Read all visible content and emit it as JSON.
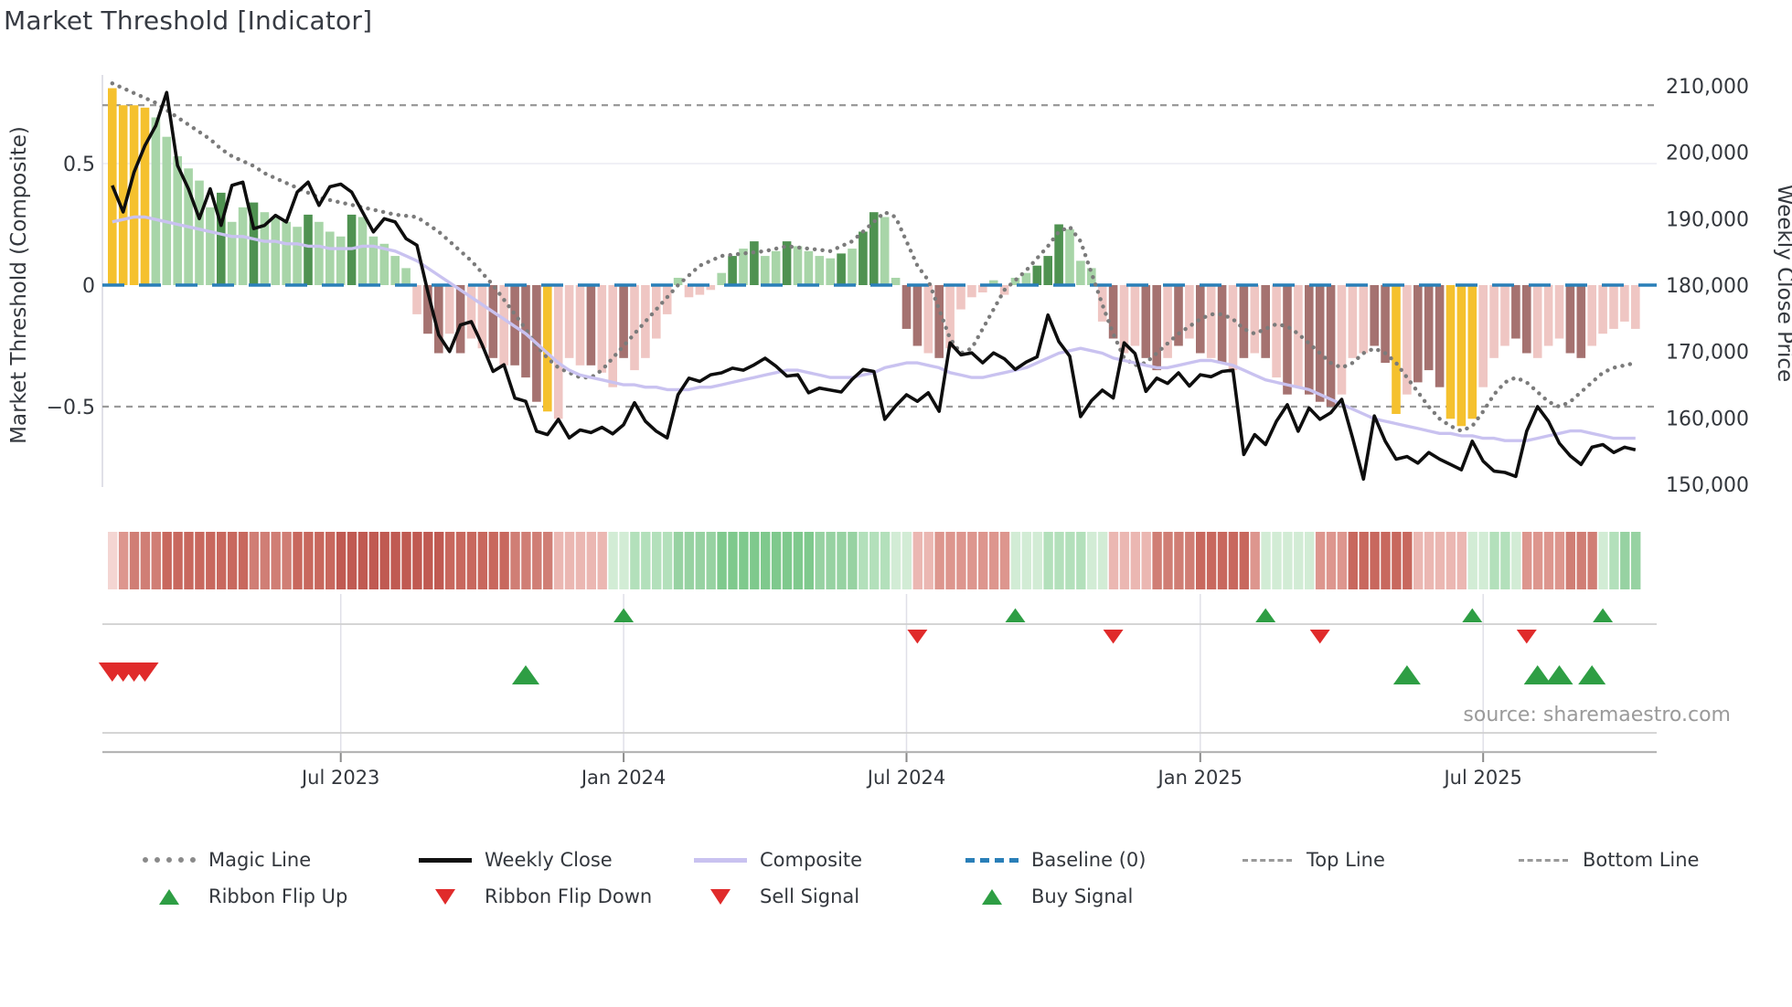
{
  "title": "Market Threshold [Indicator]",
  "source_text": "source: sharemaestro.com",
  "axes": {
    "left_label": "Market Threshold (Composite)",
    "right_label": "Weekly Close Price",
    "left_ticks": [
      {
        "label": "0.5",
        "value": 0.5
      },
      {
        "label": "0",
        "value": 0
      },
      {
        "label": "−0.5",
        "value": -0.5
      }
    ],
    "right_ticks": [
      {
        "label": "210,000",
        "value": 210
      },
      {
        "label": "200,000",
        "value": 200
      },
      {
        "label": "190,000",
        "value": 190
      },
      {
        "label": "180,000",
        "value": 180
      },
      {
        "label": "170,000",
        "value": 170
      },
      {
        "label": "160,000",
        "value": 160
      },
      {
        "label": "150,000",
        "value": 150
      }
    ],
    "x_ticks": [
      {
        "label": "Jul 2023",
        "week": 21
      },
      {
        "label": "Jan 2024",
        "week": 47
      },
      {
        "label": "Jul 2024",
        "week": 73
      },
      {
        "label": "Jan 2025",
        "week": 100
      },
      {
        "label": "Jul 2025",
        "week": 126
      }
    ]
  },
  "legend": {
    "row1": [
      {
        "label": "Magic Line",
        "swatch": "dotted-gray-line"
      },
      {
        "label": "Weekly Close",
        "swatch": "solid-black-line"
      },
      {
        "label": "Composite",
        "swatch": "solid-purple-line"
      },
      {
        "label": "Baseline (0)",
        "swatch": "dashed-blue-line"
      },
      {
        "label": "Top Line",
        "swatch": "dashed-gray-line"
      },
      {
        "label": "Bottom Line",
        "swatch": "dashed-gray-line"
      }
    ],
    "row2": [
      {
        "label": "Ribbon Flip Up",
        "swatch": "green-up-triangle"
      },
      {
        "label": "Ribbon Flip Down",
        "swatch": "red-down-triangle"
      },
      {
        "label": "Sell Signal",
        "swatch": "red-down-triangle"
      },
      {
        "label": "Buy Signal",
        "swatch": "green-up-triangle"
      }
    ]
  },
  "colors": {
    "bar_map": {
      "Y": "#F5C12E",
      "G": "#A8D5A8",
      "D": "#4F9251",
      "P": "#EFC6C3",
      "M": "#A57270"
    },
    "weekly_close": "#0E0E0E",
    "composite": "#C9C2F0",
    "magic_line": "#7B7B7B",
    "baseline": "#2A7FB8",
    "threshold_lines": "#9A9A9A",
    "grid": "#ECECF4",
    "spine": "#D9D9E3",
    "panel_line": "#CFCFCF",
    "axis_line": "#B5B5B5",
    "tick": "#8A8A8A",
    "tick_text": "#33373D",
    "flip_up": "#2E9E44",
    "flip_down": "#E02B2B",
    "buy": "#2E9E44",
    "sell": "#E02B2B",
    "ribbon_map": {
      "r1": "#C05A52",
      "r2": "#C8685E",
      "r3": "#D07E75",
      "r4": "#DD968E",
      "r5": "#EBB7B2",
      "r6": "#F4D5D2",
      "g1": "#7FC98D",
      "g2": "#97D2A2",
      "g3": "#B3E0BB",
      "g4": "#D2ECD5"
    }
  },
  "chart_data": {
    "type": "bar+line (weekly indicator panel)",
    "title": "Market Threshold [Indicator]",
    "x_unit": "week",
    "total_weeks": 141,
    "x_tick_labels": [
      "Jul 2023",
      "Jan 2024",
      "Jul 2024",
      "Jan 2025",
      "Jul 2025"
    ],
    "x_tick_weeks": [
      21,
      47,
      73,
      100,
      126
    ],
    "ylabel_left": "Market Threshold (Composite)",
    "ylabel_right": "Weekly Close Price",
    "ylim_left": [
      -0.87,
      0.87
    ],
    "ylim_right_thousands": [
      148,
      212
    ],
    "baseline": 0,
    "top_line": 0.74,
    "bottom_line": -0.5,
    "gridline_at": 0.5,
    "threshold_bars": {
      "values": [
        0.81,
        0.74,
        0.74,
        0.73,
        0.69,
        0.61,
        0.53,
        0.48,
        0.43,
        0.32,
        0.38,
        0.26,
        0.32,
        0.34,
        0.3,
        0.28,
        0.26,
        0.24,
        0.29,
        0.26,
        0.22,
        0.2,
        0.29,
        0.28,
        0.2,
        0.17,
        0.12,
        0.07,
        -0.12,
        -0.2,
        -0.28,
        -0.2,
        -0.28,
        -0.22,
        -0.26,
        -0.3,
        -0.33,
        -0.33,
        -0.38,
        -0.48,
        -0.52,
        -0.55,
        -0.3,
        -0.33,
        -0.33,
        -0.36,
        -0.42,
        -0.3,
        -0.35,
        -0.3,
        -0.22,
        -0.12,
        0.03,
        -0.05,
        -0.04,
        -0.02,
        0.05,
        0.12,
        0.15,
        0.18,
        0.12,
        0.14,
        0.18,
        0.16,
        0.14,
        0.12,
        0.11,
        0.13,
        0.15,
        0.22,
        0.3,
        0.28,
        0.03,
        -0.18,
        -0.25,
        -0.28,
        -0.3,
        -0.26,
        -0.1,
        -0.05,
        -0.03,
        0.02,
        -0.04,
        0.03,
        0.05,
        0.08,
        0.12,
        0.25,
        0.23,
        0.1,
        0.07,
        -0.15,
        -0.22,
        -0.28,
        -0.25,
        -0.3,
        -0.35,
        -0.3,
        -0.25,
        -0.22,
        -0.28,
        -0.3,
        -0.32,
        -0.35,
        -0.3,
        -0.28,
        -0.3,
        -0.38,
        -0.45,
        -0.42,
        -0.45,
        -0.48,
        -0.5,
        -0.45,
        -0.3,
        -0.28,
        -0.25,
        -0.32,
        -0.53,
        -0.45,
        -0.4,
        -0.35,
        -0.42,
        -0.55,
        -0.58,
        -0.55,
        -0.42,
        -0.3,
        -0.25,
        -0.22,
        -0.28,
        -0.3,
        -0.25,
        -0.22,
        -0.28,
        -0.3,
        -0.25,
        -0.2,
        -0.18,
        -0.15,
        -0.18
      ],
      "colors": [
        "Y",
        "Y",
        "Y",
        "Y",
        "G",
        "G",
        "G",
        "G",
        "G",
        "G",
        "D",
        "G",
        "G",
        "D",
        "G",
        "G",
        "G",
        "G",
        "D",
        "G",
        "G",
        "G",
        "D",
        "G",
        "G",
        "G",
        "G",
        "G",
        "P",
        "M",
        "M",
        "P",
        "M",
        "P",
        "P",
        "M",
        "P",
        "M",
        "M",
        "M",
        "Y",
        "P",
        "P",
        "P",
        "M",
        "P",
        "P",
        "M",
        "P",
        "P",
        "P",
        "P",
        "G",
        "P",
        "P",
        "P",
        "G",
        "D",
        "G",
        "D",
        "G",
        "G",
        "D",
        "G",
        "G",
        "G",
        "G",
        "D",
        "G",
        "D",
        "D",
        "G",
        "G",
        "M",
        "M",
        "P",
        "M",
        "P",
        "P",
        "P",
        "P",
        "G",
        "P",
        "G",
        "G",
        "D",
        "D",
        "D",
        "G",
        "G",
        "G",
        "P",
        "M",
        "P",
        "P",
        "M",
        "M",
        "P",
        "M",
        "P",
        "M",
        "P",
        "M",
        "P",
        "M",
        "P",
        "M",
        "P",
        "M",
        "P",
        "M",
        "M",
        "M",
        "P",
        "P",
        "P",
        "M",
        "M",
        "Y",
        "P",
        "M",
        "M",
        "M",
        "Y",
        "Y",
        "Y",
        "P",
        "P",
        "P",
        "M",
        "M",
        "P",
        "P",
        "P",
        "M",
        "M",
        "P",
        "P",
        "P",
        "P",
        "P"
      ]
    },
    "weekly_close_thousands": [
      195,
      191,
      197,
      201,
      204,
      209,
      198,
      194.5,
      190,
      194.5,
      189,
      195,
      195.5,
      188.5,
      189,
      190.5,
      189.5,
      194,
      195.5,
      192,
      194.8,
      195.2,
      194,
      191,
      188,
      190,
      189.5,
      187,
      186,
      179,
      172.5,
      170,
      174,
      174.5,
      171,
      167,
      168,
      163,
      162.5,
      158,
      157.5,
      159.8,
      157,
      158.2,
      157.8,
      158.6,
      157.6,
      159,
      162.3,
      159.5,
      158,
      157,
      163.5,
      166,
      165.5,
      166.5,
      166.8,
      167.5,
      167.2,
      168,
      169,
      167.8,
      166.3,
      166.5,
      163.8,
      164.5,
      164.2,
      163.9,
      165.8,
      167.3,
      167,
      159.8,
      161.8,
      163.5,
      162.5,
      163.8,
      161,
      171.3,
      169.5,
      169.8,
      168.3,
      169.8,
      168.9,
      167.3,
      168.4,
      169.2,
      175.5,
      171.5,
      169.3,
      160.2,
      162.6,
      164.2,
      163,
      171.3,
      169.7,
      164,
      166,
      165.2,
      166.8,
      164.8,
      166.5,
      166.2,
      167,
      167.2,
      154.5,
      157.5,
      156,
      159.5,
      162,
      158,
      161.5,
      159.8,
      160.8,
      162.8,
      157,
      150.8,
      160.3,
      156.5,
      153.8,
      154.2,
      153.2,
      154.8,
      153.8,
      153,
      152.2,
      156.5,
      153.5,
      152,
      151.8,
      151.2,
      158,
      161.7,
      159.5,
      156.2,
      154.3,
      153,
      155.6,
      156,
      154.8,
      155.6,
      155.2
    ],
    "composite": [
      0.26,
      0.27,
      0.28,
      0.28,
      0.27,
      0.26,
      0.25,
      0.24,
      0.23,
      0.22,
      0.21,
      0.2,
      0.2,
      0.19,
      0.18,
      0.18,
      0.17,
      0.17,
      0.16,
      0.16,
      0.15,
      0.15,
      0.15,
      0.16,
      0.16,
      0.15,
      0.14,
      0.12,
      0.1,
      0.07,
      0.04,
      0.01,
      -0.02,
      -0.05,
      -0.08,
      -0.11,
      -0.14,
      -0.17,
      -0.2,
      -0.24,
      -0.28,
      -0.32,
      -0.35,
      -0.37,
      -0.38,
      -0.39,
      -0.4,
      -0.41,
      -0.41,
      -0.42,
      -0.42,
      -0.43,
      -0.43,
      -0.43,
      -0.42,
      -0.42,
      -0.41,
      -0.4,
      -0.39,
      -0.38,
      -0.37,
      -0.36,
      -0.35,
      -0.35,
      -0.36,
      -0.37,
      -0.38,
      -0.38,
      -0.38,
      -0.37,
      -0.36,
      -0.34,
      -0.33,
      -0.32,
      -0.32,
      -0.33,
      -0.34,
      -0.36,
      -0.37,
      -0.38,
      -0.38,
      -0.37,
      -0.36,
      -0.35,
      -0.34,
      -0.32,
      -0.3,
      -0.28,
      -0.27,
      -0.26,
      -0.27,
      -0.28,
      -0.3,
      -0.31,
      -0.32,
      -0.33,
      -0.34,
      -0.34,
      -0.33,
      -0.32,
      -0.31,
      -0.31,
      -0.32,
      -0.33,
      -0.35,
      -0.37,
      -0.39,
      -0.4,
      -0.41,
      -0.42,
      -0.43,
      -0.45,
      -0.47,
      -0.49,
      -0.51,
      -0.53,
      -0.55,
      -0.56,
      -0.57,
      -0.58,
      -0.59,
      -0.6,
      -0.61,
      -0.61,
      -0.62,
      -0.62,
      -0.63,
      -0.63,
      -0.64,
      -0.64,
      -0.64,
      -0.63,
      -0.62,
      -0.61,
      -0.6,
      -0.6,
      -0.61,
      -0.62,
      -0.63,
      -0.63,
      -0.63
    ],
    "magic_line": [
      0.83,
      0.81,
      0.79,
      0.77,
      0.75,
      0.72,
      0.69,
      0.66,
      0.63,
      0.6,
      0.56,
      0.53,
      0.51,
      0.49,
      0.46,
      0.44,
      0.42,
      0.4,
      0.38,
      0.36,
      0.35,
      0.34,
      0.33,
      0.32,
      0.31,
      0.3,
      0.29,
      0.285,
      0.28,
      0.25,
      0.22,
      0.18,
      0.14,
      0.1,
      0.05,
      0.0,
      -0.06,
      -0.12,
      -0.18,
      -0.25,
      -0.3,
      -0.34,
      -0.36,
      -0.38,
      -0.38,
      -0.35,
      -0.3,
      -0.25,
      -0.2,
      -0.15,
      -0.1,
      -0.05,
      0.0,
      0.04,
      0.08,
      0.1,
      0.12,
      0.125,
      0.13,
      0.135,
      0.14,
      0.15,
      0.16,
      0.155,
      0.15,
      0.145,
      0.14,
      0.16,
      0.18,
      0.22,
      0.26,
      0.3,
      0.28,
      0.18,
      0.08,
      0.02,
      -0.1,
      -0.22,
      -0.28,
      -0.26,
      -0.18,
      -0.1,
      -0.02,
      0.02,
      0.06,
      0.11,
      0.16,
      0.22,
      0.24,
      0.18,
      0.05,
      -0.08,
      -0.2,
      -0.3,
      -0.33,
      -0.32,
      -0.28,
      -0.24,
      -0.2,
      -0.17,
      -0.14,
      -0.12,
      -0.12,
      -0.14,
      -0.18,
      -0.2,
      -0.18,
      -0.16,
      -0.17,
      -0.2,
      -0.24,
      -0.28,
      -0.32,
      -0.34,
      -0.32,
      -0.28,
      -0.26,
      -0.28,
      -0.32,
      -0.38,
      -0.44,
      -0.5,
      -0.55,
      -0.58,
      -0.6,
      -0.58,
      -0.52,
      -0.45,
      -0.4,
      -0.38,
      -0.4,
      -0.44,
      -0.48,
      -0.5,
      -0.48,
      -0.44,
      -0.4,
      -0.36,
      -0.34,
      -0.33,
      -0.32
    ],
    "ribbon": [
      "r6",
      "r4",
      "r3",
      "r3",
      "r3",
      "r2",
      "r2",
      "r2",
      "r2",
      "r2",
      "r2",
      "r2",
      "r2",
      "r3",
      "r3",
      "r3",
      "r3",
      "r2",
      "r2",
      "r2",
      "r2",
      "r1",
      "r1",
      "r1",
      "r1",
      "r1",
      "r1",
      "r1",
      "r1",
      "r1",
      "r1",
      "r2",
      "r2",
      "r2",
      "r2",
      "r2",
      "r2",
      "r3",
      "r3",
      "r3",
      "r3",
      "r5",
      "r5",
      "r5",
      "r5",
      "r5",
      "g4",
      "g4",
      "g3",
      "g3",
      "g3",
      "g3",
      "g2",
      "g2",
      "g2",
      "g2",
      "g1",
      "g1",
      "g1",
      "g1",
      "g1",
      "g1",
      "g1",
      "g1",
      "g1",
      "g2",
      "g2",
      "g2",
      "g2",
      "g3",
      "g3",
      "g3",
      "g4",
      "g4",
      "r5",
      "r5",
      "r4",
      "r4",
      "r4",
      "r4",
      "r4",
      "r4",
      "r4",
      "g4",
      "g4",
      "g4",
      "g3",
      "g3",
      "g3",
      "g3",
      "g4",
      "g4",
      "r5",
      "r5",
      "r5",
      "r5",
      "r3",
      "r3",
      "r3",
      "r3",
      "r2",
      "r2",
      "r2",
      "r2",
      "r2",
      "r4",
      "g4",
      "g4",
      "g4",
      "g4",
      "g4",
      "r4",
      "r4",
      "r4",
      "r2",
      "r2",
      "r2",
      "r2",
      "r2",
      "r2",
      "r5",
      "r5",
      "r5",
      "r5",
      "r5",
      "g4",
      "g4",
      "g3",
      "g3",
      "g4",
      "r4",
      "r4",
      "r4",
      "r4",
      "r3",
      "r3",
      "r3",
      "g4",
      "g3",
      "g2",
      "g2"
    ],
    "signals": {
      "ribbon_flip_up_weeks": [
        47,
        83,
        106,
        125,
        137
      ],
      "ribbon_flip_down_weeks": [
        74,
        92,
        111,
        130
      ],
      "sell_signal_weeks": [
        0,
        1,
        2,
        3
      ],
      "buy_signal_weeks": [
        38,
        119,
        131,
        133,
        136
      ]
    }
  }
}
